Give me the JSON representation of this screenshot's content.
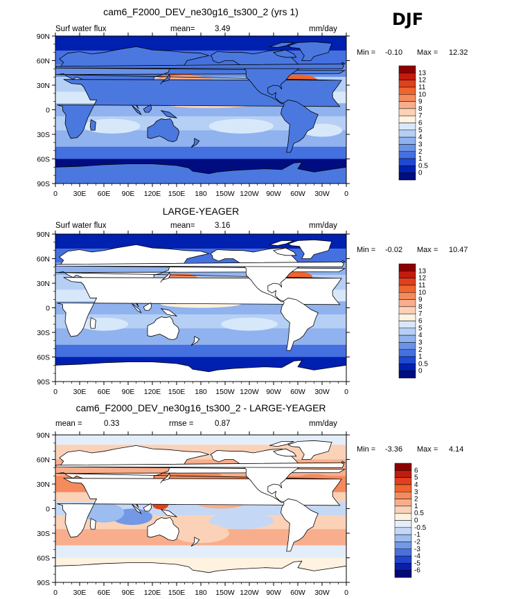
{
  "season": "DJF",
  "chart_data": [
    {
      "type": "heatmap",
      "title": "cam6_F2000_DEV_ne30g16_ts300_2 (yrs 1)",
      "left_label": "Surf water flux",
      "stat1_label": "mean=",
      "stat1_value": "3.49",
      "stat2_label": "",
      "stat2_value": "",
      "units": "mm/day",
      "min_label": "Min =",
      "min_value": "-0.10",
      "max_label": "Max =",
      "max_value": "12.32",
      "x_ticks": [
        "0",
        "30E",
        "60E",
        "90E",
        "120E",
        "150E",
        "180",
        "150W",
        "120W",
        "90W",
        "60W",
        "30W",
        "0"
      ],
      "y_ticks": [
        "90N",
        "60N",
        "30N",
        "0",
        "30S",
        "60S",
        "90S"
      ],
      "colorbar_labels": [
        "13",
        "12",
        "11",
        "10",
        "9",
        "8",
        "7",
        "6",
        "5",
        "4",
        "3",
        "2",
        "1",
        "0.5",
        "0"
      ],
      "colorbar_colors": [
        "#8c0000",
        "#c01c10",
        "#e0401c",
        "#f0642e",
        "#f58a5c",
        "#f8ae8c",
        "#fbd2b8",
        "#fff2e0",
        "#d8e8fb",
        "#b6cff5",
        "#90b2ee",
        "#6a92e6",
        "#4470e0",
        "#2048d2",
        "#0020b0",
        "#000d80"
      ],
      "field": "model"
    },
    {
      "type": "heatmap",
      "title": "LARGE-YEAGER",
      "left_label": "Surf water flux",
      "stat1_label": "mean=",
      "stat1_value": "3.16",
      "stat2_label": "",
      "stat2_value": "",
      "units": "mm/day",
      "min_label": "Min =",
      "min_value": "-0.02",
      "max_label": "Max =",
      "max_value": "10.47",
      "x_ticks": [
        "0",
        "30E",
        "60E",
        "90E",
        "120E",
        "150E",
        "180",
        "150W",
        "120W",
        "90W",
        "60W",
        "30W",
        "0"
      ],
      "y_ticks": [
        "90N",
        "60N",
        "30N",
        "0",
        "30S",
        "60S",
        "90S"
      ],
      "colorbar_labels": [
        "13",
        "12",
        "11",
        "10",
        "9",
        "8",
        "7",
        "6",
        "5",
        "4",
        "3",
        "2",
        "1",
        "0.5",
        "0"
      ],
      "colorbar_colors": [
        "#8c0000",
        "#c01c10",
        "#e0401c",
        "#f0642e",
        "#f58a5c",
        "#f8ae8c",
        "#fbd2b8",
        "#fff2e0",
        "#d8e8fb",
        "#b6cff5",
        "#90b2ee",
        "#6a92e6",
        "#4470e0",
        "#2048d2",
        "#0020b0",
        "#000d80"
      ],
      "field": "obs"
    },
    {
      "type": "heatmap",
      "title": "cam6_F2000_DEV_ne30g16_ts300_2 - LARGE-YEAGER",
      "left_label": "mean =",
      "left_value": "0.33",
      "stat1_label": "rmse =",
      "stat1_value": "0.87",
      "stat2_label": "",
      "stat2_value": "",
      "units": "mm/day",
      "min_label": "Min =",
      "min_value": "-3.36",
      "max_label": "Max =",
      "max_value": "4.14",
      "x_ticks": [
        "0",
        "30E",
        "60E",
        "90E",
        "120E",
        "150E",
        "180",
        "150W",
        "120W",
        "90W",
        "60W",
        "30W",
        "0"
      ],
      "y_ticks": [
        "90N",
        "60N",
        "30N",
        "0",
        "30S",
        "60S",
        "90S"
      ],
      "colorbar_labels": [
        "6",
        "5",
        "4",
        "3",
        "2",
        "1",
        "0.5",
        "0",
        "-0.5",
        "-1",
        "-2",
        "-3",
        "-4",
        "-5",
        "-6"
      ],
      "colorbar_colors": [
        "#8c0000",
        "#c01c10",
        "#e0401c",
        "#f0642e",
        "#f58a5c",
        "#f8ae8c",
        "#fbd2b8",
        "#fff2e0",
        "#e4eefb",
        "#c4d8f6",
        "#9dbcef",
        "#7398e6",
        "#4a70dc",
        "#2244cc",
        "#0a1ea8",
        "#00087a"
      ],
      "field": "diff"
    }
  ]
}
